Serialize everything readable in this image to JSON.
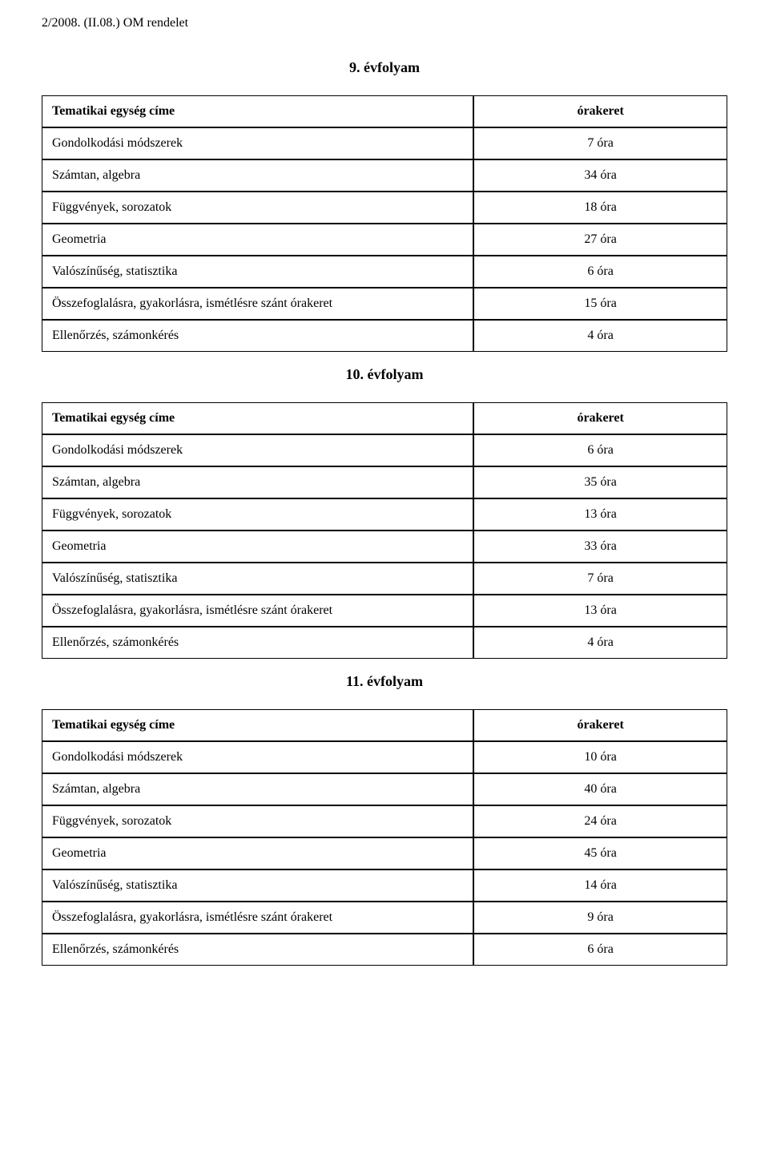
{
  "header": "2/2008. (II.08.) OM rendelet",
  "sections": [
    {
      "title": "9. évfolyam",
      "header_left": "Tematikai egység címe",
      "header_right": "órakeret",
      "rows": [
        {
          "left": "Gondolkodási módszerek",
          "right": "7 óra"
        },
        {
          "left": "Számtan, algebra",
          "right": "34 óra"
        },
        {
          "left": "Függvények, sorozatok",
          "right": "18 óra"
        },
        {
          "left": "Geometria",
          "right": "27 óra"
        },
        {
          "left": "Valószínűség, statisztika",
          "right": "6 óra"
        },
        {
          "left": "Összefoglalásra, gyakorlásra, ismétlésre szánt órakeret",
          "right": "15 óra"
        },
        {
          "left": "Ellenőrzés, számonkérés",
          "right": "4 óra"
        }
      ]
    },
    {
      "title": "10. évfolyam",
      "header_left": "Tematikai egység címe",
      "header_right": "órakeret",
      "rows": [
        {
          "left": "Gondolkodási módszerek",
          "right": "6 óra"
        },
        {
          "left": "Számtan, algebra",
          "right": "35 óra"
        },
        {
          "left": "Függvények, sorozatok",
          "right": "13 óra"
        },
        {
          "left": "Geometria",
          "right": "33 óra"
        },
        {
          "left": "Valószínűség, statisztika",
          "right": "7 óra"
        },
        {
          "left": "Összefoglalásra, gyakorlásra, ismétlésre szánt órakeret",
          "right": "13 óra"
        },
        {
          "left": "Ellenőrzés, számonkérés",
          "right": "4 óra"
        }
      ]
    },
    {
      "title": "11. évfolyam",
      "header_left": "Tematikai egység címe",
      "header_right": "órakeret",
      "rows": [
        {
          "left": "Gondolkodási módszerek",
          "right": "10 óra"
        },
        {
          "left": "Számtan, algebra",
          "right": "40 óra"
        },
        {
          "left": "Függvények, sorozatok",
          "right": "24 óra"
        },
        {
          "left": "Geometria",
          "right": "45 óra"
        },
        {
          "left": "Valószínűség, statisztika",
          "right": "14 óra"
        },
        {
          "left": "Összefoglalásra, gyakorlásra, ismétlésre szánt órakeret",
          "right": "9 óra"
        },
        {
          "left": "Ellenőrzés, számonkérés",
          "right": "6 óra"
        }
      ]
    }
  ]
}
